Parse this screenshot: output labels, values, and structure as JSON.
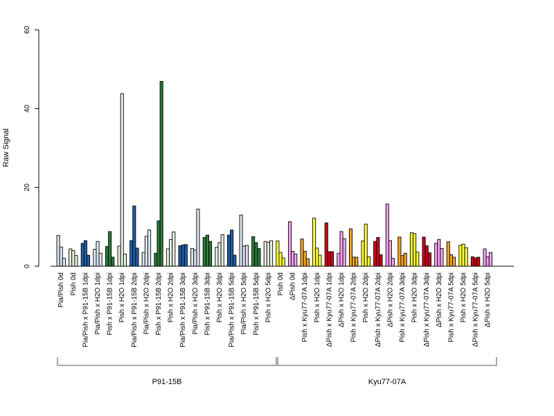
{
  "chart_data": {
    "type": "bar",
    "ylabel": "Raw Signal",
    "xlabel": "",
    "ylim": [
      0,
      60
    ],
    "yticks": [
      0,
      20,
      40,
      60
    ],
    "grid": false,
    "legend": "none",
    "categories": [
      "Pia/Pish 0d",
      "Pish 0d",
      "Pia/Pish x P91-15B 1dpi",
      "Pia/Pish x H2O 1dpi",
      "Pish x P91-15B 1dpi",
      "Pish x H2O 1dpi",
      "Pia/Pish x P91-15B 2dpi",
      "Pia/Pish x H2O 2dpi",
      "Pish x P91-15B 2dpi",
      "Pish x H2O 2dpi",
      "Pia/Pish x P91-15B 3dpi",
      "Pia/Pish x H2O 3dpi",
      "Pish x P91-15B 3dpi",
      "Pish x H2O 3dpi",
      "Pia/Pish x P91-15B 5dpi",
      "Pia/Pish x H2O 5dpi",
      "Pish x P91-15B 5dpi",
      "Pish x H2O 5dpi",
      "Pish 0d",
      "ΔPish 0d",
      "Pish x Kyu77-07A 1dpi",
      "Pish x H2O 1dpi",
      "ΔPish x Kyu77-07A 1dpi",
      "ΔPish x H2O 1dpi",
      "Pish x Kyu77-07A 2dpi",
      "Pish x H2O 2dpi",
      "ΔPish x Kyu77-07A 2dpi",
      "ΔPish x H2O 2dpi",
      "Pish x Kyu77-07A 3dpi",
      "Pish x H2O 3dpi",
      "ΔPish x Kyu77-07A 3dpi",
      "ΔPish x H2O 3dpi",
      "Pish x Kyu77-07A 5dpi",
      "Pish x H2O 5dpi",
      "ΔPish x Kyu77-07A 5dpi",
      "ΔPish x H2O 5dpi"
    ],
    "colors": [
      "#dce6f2",
      "#e5f2df",
      "#1f5fa8",
      "#dce6f2",
      "#2a7a3a",
      "#e5f2df",
      "#1f5fa8",
      "#dce6f2",
      "#2a7a3a",
      "#e5f2df",
      "#1f5fa8",
      "#dce6f2",
      "#2a7a3a",
      "#e5f2df",
      "#1f5fa8",
      "#dce6f2",
      "#2a7a3a",
      "#e5f2df",
      "#ffff33",
      "#f4a0f0",
      "#f5a623",
      "#ffff33",
      "#d0021b",
      "#f4a0f0",
      "#f5a623",
      "#ffff33",
      "#d0021b",
      "#f4a0f0",
      "#f5a623",
      "#ffff33",
      "#d0021b",
      "#f4a0f0",
      "#f5a623",
      "#ffff33",
      "#d0021b",
      "#f4a0f0"
    ],
    "values": [
      [
        7.8,
        4.9,
        2.0
      ],
      [
        4.4,
        4.0,
        2.7
      ],
      [
        5.8,
        6.5,
        2.8
      ],
      [
        4.3,
        6.3,
        3.3
      ],
      [
        5.0,
        8.8,
        2.3
      ],
      [
        5.1,
        43.8,
        3.1
      ],
      [
        6.5,
        15.3,
        4.6
      ],
      [
        3.5,
        7.6,
        9.2
      ],
      [
        3.3,
        11.5,
        46.9
      ],
      [
        4.4,
        6.8,
        8.7
      ],
      [
        5.2,
        5.4,
        5.5
      ],
      [
        4.5,
        4.1,
        14.5
      ],
      [
        7.3,
        7.9,
        6.3
      ],
      [
        4.8,
        6.0,
        8.0
      ],
      [
        7.9,
        9.2,
        2.8
      ],
      [
        13.0,
        5.1,
        5.3
      ],
      [
        7.5,
        6.0,
        4.5
      ],
      [
        6.3,
        6.1,
        6.5
      ],
      [
        6.4,
        3.5,
        2.1
      ],
      [
        11.3,
        3.8,
        3.1
      ],
      [
        6.9,
        3.8,
        1.9
      ],
      [
        12.2,
        4.6,
        2.8
      ],
      [
        11.0,
        3.7,
        3.7
      ],
      [
        3.3,
        8.8,
        7.0
      ],
      [
        9.5,
        2.3,
        2.3
      ],
      [
        6.4,
        10.7,
        2.4
      ],
      [
        6.3,
        7.3,
        2.9
      ],
      [
        15.8,
        6.5,
        2.0
      ],
      [
        7.4,
        2.7,
        3.3
      ],
      [
        8.5,
        8.3,
        3.6
      ],
      [
        7.4,
        5.2,
        3.4
      ],
      [
        5.8,
        6.8,
        4.5
      ],
      [
        6.2,
        2.9,
        2.3
      ],
      [
        5.3,
        5.6,
        4.7
      ],
      [
        2.4,
        2.1,
        2.3
      ],
      [
        4.4,
        2.4,
        3.5
      ]
    ],
    "groups": [
      {
        "label": "P91-15B",
        "from": 0,
        "to": 17
      },
      {
        "label": "Kyu77-07A",
        "from": 18,
        "to": 35
      }
    ]
  }
}
